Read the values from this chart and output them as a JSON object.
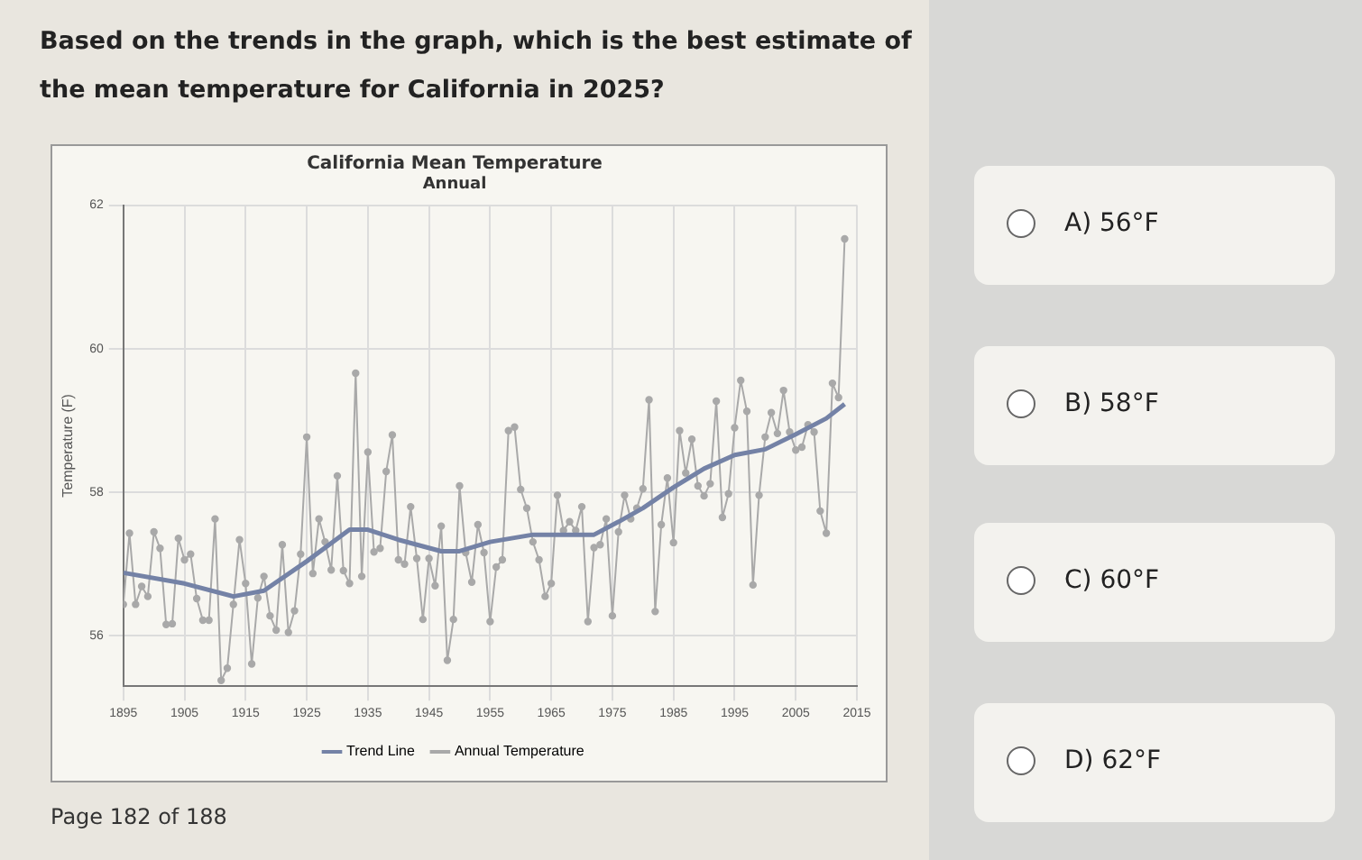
{
  "chart_data": {
    "type": "line",
    "title": "California Mean Temperature",
    "subtitle": "Annual",
    "ylabel": "Temperature (F)",
    "xlim": [
      1895,
      2015
    ],
    "xticks": [
      1895,
      1905,
      1915,
      1925,
      1935,
      1945,
      1955,
      1965,
      1975,
      1985,
      1995,
      2005,
      2015
    ],
    "ylim": [
      55.3,
      62
    ],
    "yticks": [
      56,
      58,
      60,
      62
    ],
    "grid": true,
    "legend": "bottom",
    "series": [
      {
        "name": "Trend Line",
        "color": "#7482a6",
        "marker": "none",
        "x": [
          1895,
          1905,
          1913,
          1918,
          1925,
          1932,
          1935,
          1940,
          1947,
          1950,
          1955,
          1962,
          1972,
          1976,
          1980,
          1985,
          1990,
          1995,
          2000,
          2005,
          2010,
          2013
        ],
        "values": [
          56.88,
          56.73,
          56.55,
          56.63,
          57.04,
          57.48,
          57.48,
          57.34,
          57.18,
          57.18,
          57.31,
          57.41,
          57.41,
          57.59,
          57.78,
          58.07,
          58.33,
          58.52,
          58.6,
          58.81,
          59.03,
          59.23
        ]
      },
      {
        "name": "Annual Temperature",
        "color": "#a9a9a9",
        "marker": "circle",
        "x": [
          1895,
          1896,
          1897,
          1898,
          1899,
          1900,
          1901,
          1902,
          1903,
          1904,
          1905,
          1906,
          1907,
          1908,
          1909,
          1910,
          1911,
          1912,
          1913,
          1914,
          1915,
          1916,
          1917,
          1918,
          1919,
          1920,
          1921,
          1922,
          1923,
          1924,
          1925,
          1926,
          1927,
          1928,
          1929,
          1930,
          1931,
          1932,
          1933,
          1934,
          1935,
          1936,
          1937,
          1938,
          1939,
          1940,
          1941,
          1942,
          1943,
          1944,
          1945,
          1946,
          1947,
          1948,
          1949,
          1950,
          1951,
          1952,
          1953,
          1954,
          1955,
          1956,
          1957,
          1958,
          1959,
          1960,
          1961,
          1962,
          1963,
          1964,
          1965,
          1966,
          1967,
          1968,
          1969,
          1970,
          1971,
          1972,
          1973,
          1974,
          1975,
          1976,
          1977,
          1978,
          1979,
          1980,
          1981,
          1982,
          1983,
          1984,
          1985,
          1986,
          1987,
          1988,
          1989,
          1990,
          1991,
          1992,
          1993,
          1994,
          1995,
          1996,
          1997,
          1998,
          1999,
          2000,
          2001,
          2002,
          2003,
          2004,
          2005,
          2006,
          2007,
          2008,
          2009,
          2010,
          2011,
          2012,
          2013
        ],
        "values": [
          56.44,
          57.43,
          56.44,
          56.69,
          56.55,
          57.45,
          57.22,
          56.16,
          56.17,
          57.36,
          57.06,
          57.14,
          56.52,
          56.22,
          56.22,
          57.63,
          55.38,
          55.55,
          56.44,
          57.34,
          56.73,
          55.61,
          56.53,
          56.83,
          56.28,
          56.08,
          57.27,
          56.05,
          56.35,
          57.14,
          58.77,
          56.87,
          57.63,
          57.31,
          56.92,
          58.23,
          56.91,
          56.73,
          59.66,
          56.83,
          58.56,
          57.17,
          57.22,
          58.29,
          58.8,
          57.06,
          57.0,
          57.8,
          57.08,
          56.23,
          57.08,
          56.7,
          57.53,
          55.66,
          56.23,
          58.09,
          57.16,
          56.75,
          57.55,
          57.16,
          56.2,
          56.96,
          57.06,
          58.86,
          58.91,
          58.04,
          57.78,
          57.31,
          57.06,
          56.55,
          56.73,
          57.96,
          57.47,
          57.59,
          57.47,
          57.8,
          56.2,
          57.23,
          57.27,
          57.63,
          56.28,
          57.45,
          57.96,
          57.63,
          57.78,
          58.05,
          59.29,
          56.34,
          57.55,
          58.2,
          57.3,
          58.86,
          58.27,
          58.74,
          58.09,
          57.95,
          58.12,
          59.27,
          57.65,
          57.98,
          58.9,
          59.56,
          59.13,
          56.71,
          57.96,
          58.77,
          59.11,
          58.82,
          59.42,
          58.84,
          58.59,
          58.63,
          58.94,
          58.84,
          57.74,
          57.43,
          59.52,
          59.32,
          61.53
        ]
      }
    ],
    "annotations": [
      "Based on the trends in the graph, which is the best estimate of the mean temperature for California in 2025?",
      "A) 56°F",
      "B) 58°F",
      "C) 60°F",
      "D) 62°F",
      "Page 182 of 188"
    ]
  }
}
